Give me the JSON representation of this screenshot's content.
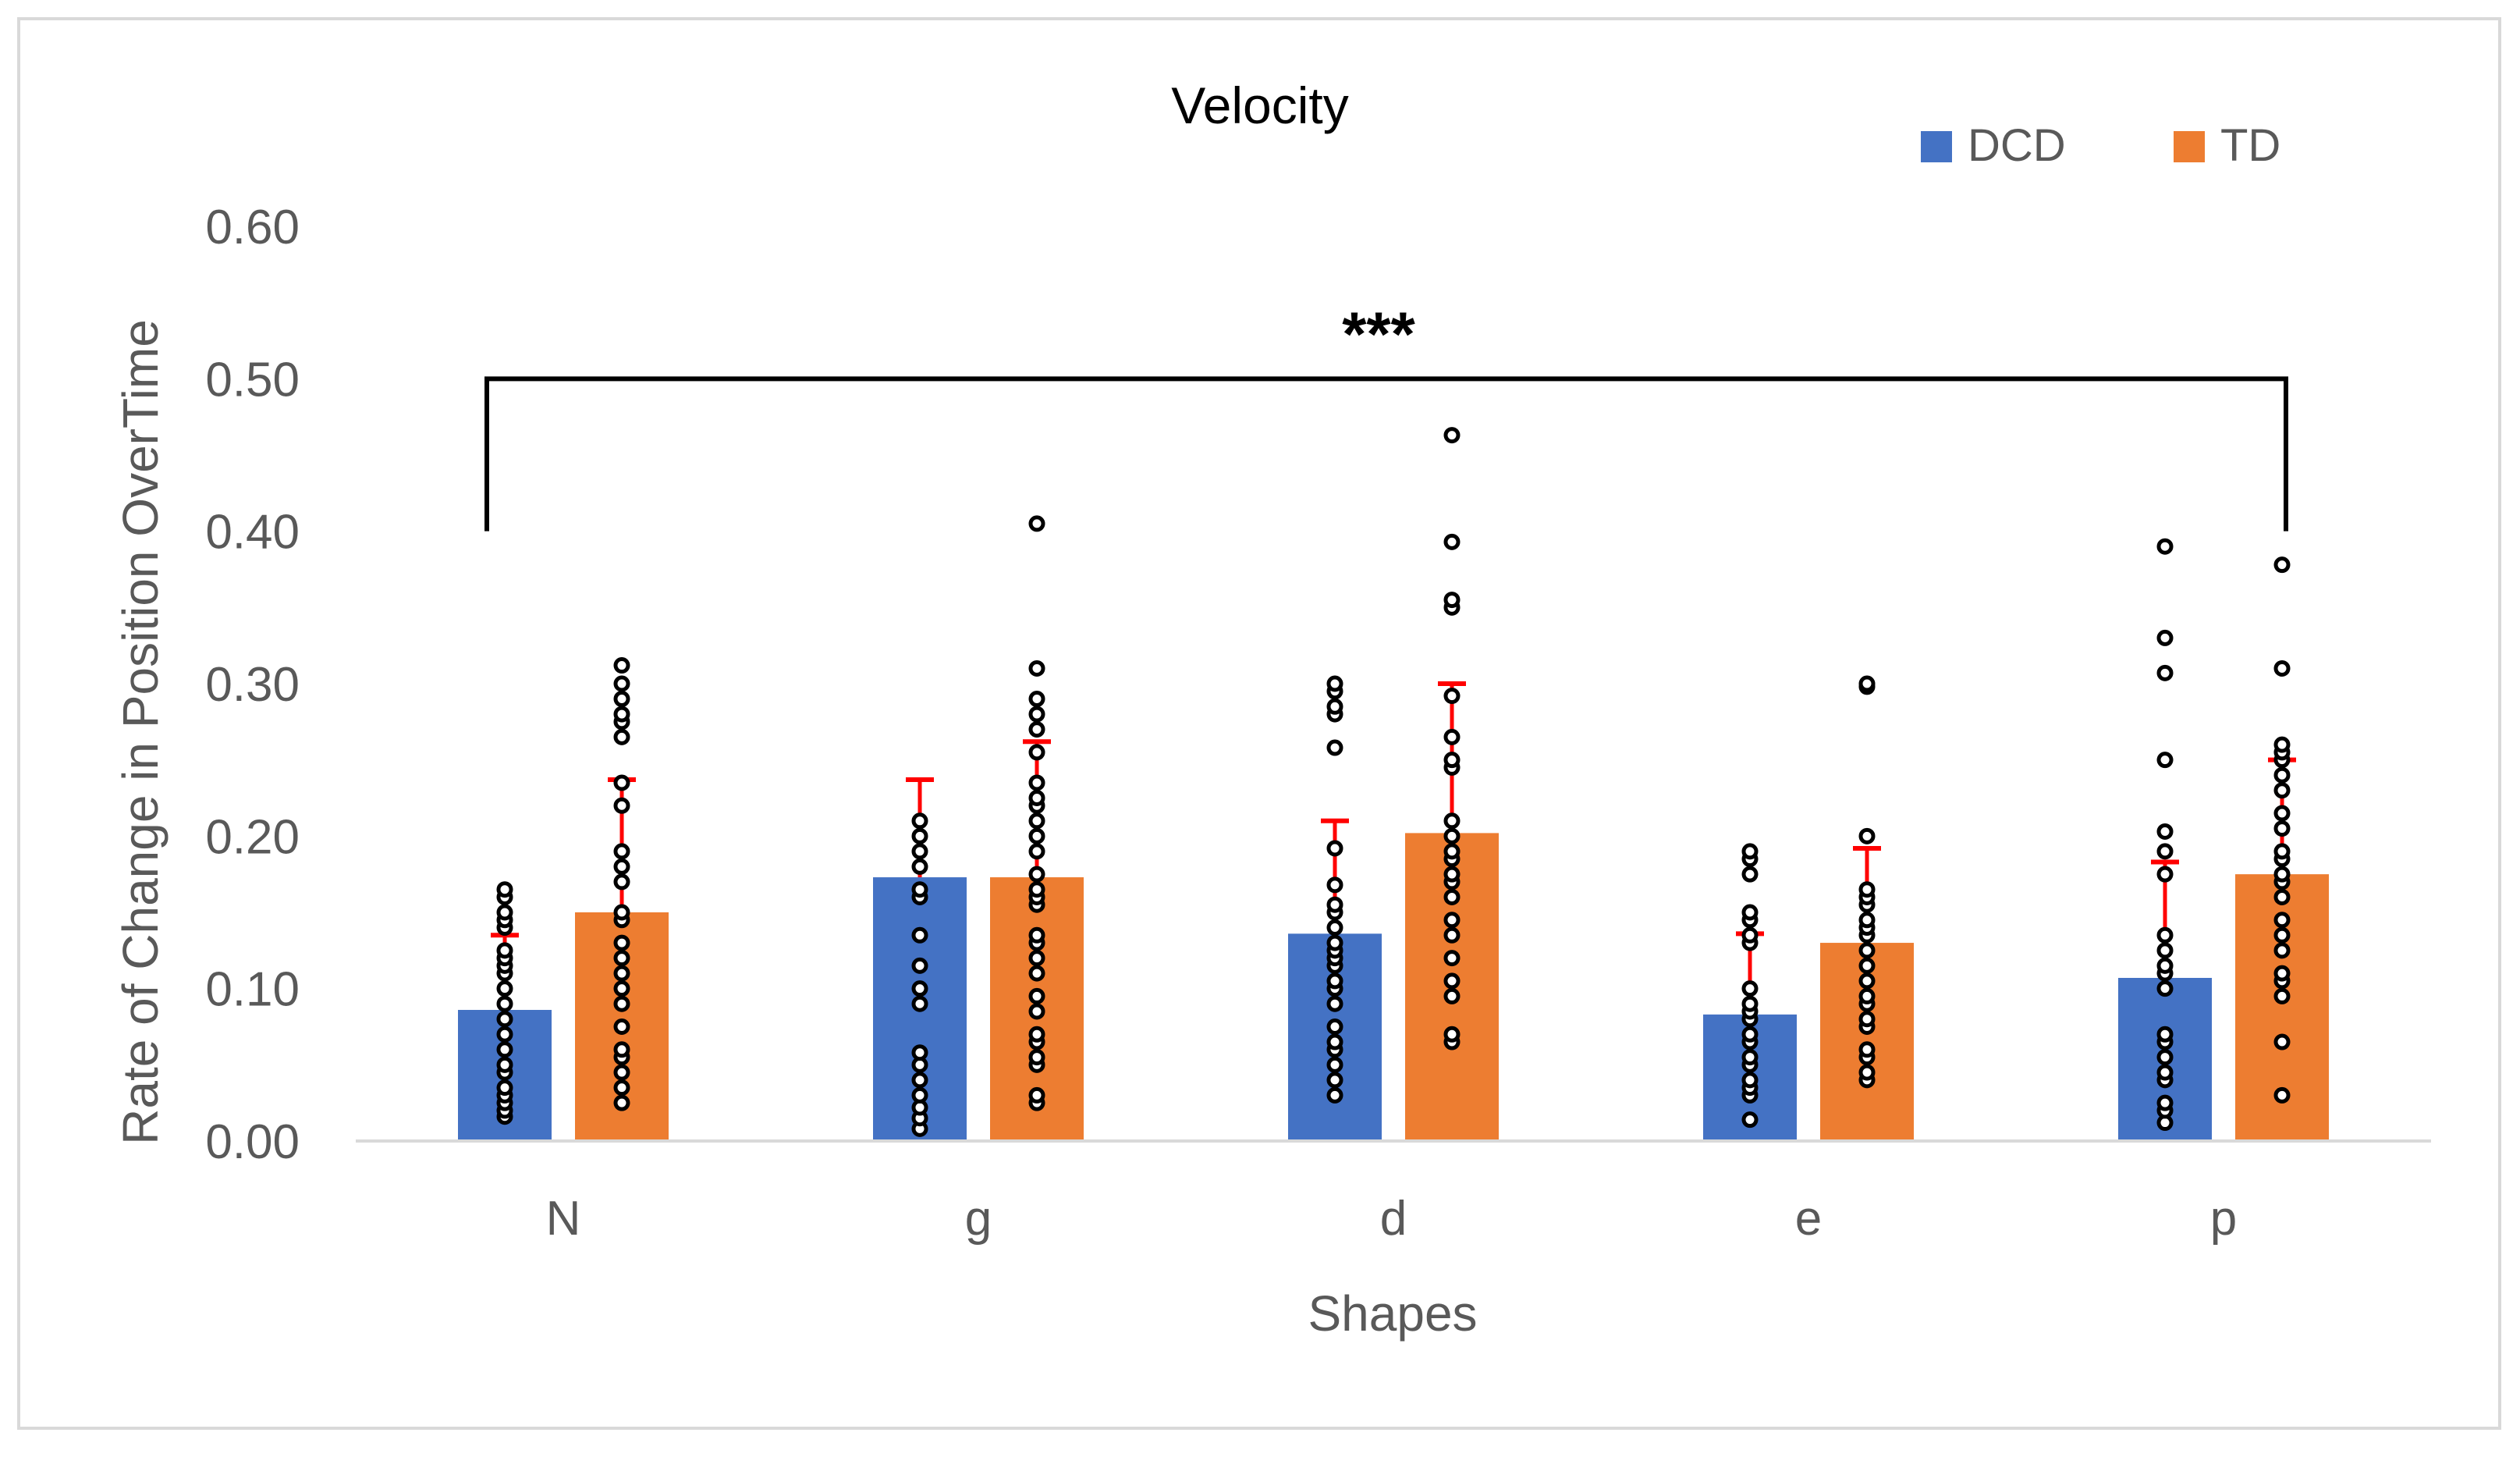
{
  "chart_data": {
    "type": "bar",
    "title": "Velocity",
    "xlabel": "Shapes",
    "ylabel": "Rate of Change in Position OverTime",
    "categories": [
      "N",
      "g",
      "d",
      "e",
      "p"
    ],
    "ylim": [
      0,
      0.6
    ],
    "ytick_labels": [
      "0.00",
      "0.10",
      "0.20",
      "0.30",
      "0.40",
      "0.50",
      "0.60"
    ],
    "yticks": [
      0,
      0.1,
      0.2,
      0.3,
      0.4,
      0.5,
      0.6
    ],
    "legend_position": "top-right",
    "series": [
      {
        "name": "DCD",
        "color": "#4472C4",
        "values": [
          0.086,
          0.173,
          0.136,
          0.083,
          0.107
        ],
        "error_top": [
          0.135,
          0.237,
          0.21,
          0.136,
          0.183
        ],
        "points": [
          [
            0.016,
            0.02,
            0.025,
            0.03,
            0.035,
            0.045,
            0.05,
            0.06,
            0.07,
            0.08,
            0.09,
            0.1,
            0.11,
            0.115,
            0.12,
            0.125,
            0.14,
            0.145,
            0.15,
            0.16,
            0.165
          ],
          [
            0.008,
            0.015,
            0.022,
            0.03,
            0.04,
            0.05,
            0.058,
            0.09,
            0.1,
            0.115,
            0.135,
            0.16,
            0.165,
            0.18,
            0.19,
            0.2,
            0.21
          ],
          [
            0.03,
            0.04,
            0.05,
            0.06,
            0.065,
            0.075,
            0.09,
            0.1,
            0.105,
            0.115,
            0.12,
            0.125,
            0.13,
            0.14,
            0.15,
            0.155,
            0.168,
            0.192,
            0.258,
            0.28,
            0.285,
            0.295,
            0.3
          ],
          [
            0.014,
            0.03,
            0.035,
            0.04,
            0.05,
            0.055,
            0.065,
            0.07,
            0.08,
            0.085,
            0.09,
            0.1,
            0.13,
            0.135,
            0.145,
            0.15,
            0.175,
            0.185,
            0.19
          ],
          [
            0.012,
            0.02,
            0.025,
            0.04,
            0.045,
            0.055,
            0.065,
            0.07,
            0.1,
            0.11,
            0.115,
            0.125,
            0.135,
            0.175,
            0.19,
            0.203,
            0.25,
            0.307,
            0.33,
            0.39
          ]
        ]
      },
      {
        "name": "TD",
        "color": "#ED7D31",
        "values": [
          0.15,
          0.173,
          0.202,
          0.13,
          0.175
        ],
        "error_top": [
          0.237,
          0.262,
          0.3,
          0.192,
          0.25
        ],
        "points": [
          [
            0.025,
            0.035,
            0.045,
            0.055,
            0.06,
            0.075,
            0.09,
            0.1,
            0.11,
            0.12,
            0.13,
            0.145,
            0.15,
            0.17,
            0.18,
            0.19,
            0.22,
            0.235,
            0.265,
            0.275,
            0.28,
            0.29,
            0.3,
            0.312
          ],
          [
            0.025,
            0.03,
            0.05,
            0.055,
            0.065,
            0.07,
            0.085,
            0.095,
            0.11,
            0.12,
            0.13,
            0.135,
            0.155,
            0.16,
            0.165,
            0.175,
            0.19,
            0.2,
            0.21,
            0.22,
            0.225,
            0.235,
            0.255,
            0.27,
            0.28,
            0.29,
            0.31,
            0.405
          ],
          [
            0.065,
            0.07,
            0.095,
            0.105,
            0.12,
            0.135,
            0.145,
            0.16,
            0.17,
            0.175,
            0.185,
            0.19,
            0.2,
            0.21,
            0.245,
            0.25,
            0.265,
            0.292,
            0.35,
            0.355,
            0.393,
            0.463
          ],
          [
            0.04,
            0.045,
            0.055,
            0.06,
            0.075,
            0.08,
            0.09,
            0.095,
            0.105,
            0.115,
            0.125,
            0.135,
            0.14,
            0.145,
            0.155,
            0.16,
            0.165,
            0.2,
            0.298,
            0.3
          ],
          [
            0.03,
            0.065,
            0.095,
            0.105,
            0.11,
            0.125,
            0.135,
            0.145,
            0.16,
            0.17,
            0.175,
            0.185,
            0.19,
            0.205,
            0.215,
            0.23,
            0.24,
            0.25,
            0.255,
            0.26,
            0.31,
            0.378
          ]
        ]
      }
    ],
    "annotation": {
      "text": "***",
      "from_category": "N",
      "to_category": "p",
      "bracket_y": 0.5,
      "leg_bottom_y": 0.4
    }
  }
}
